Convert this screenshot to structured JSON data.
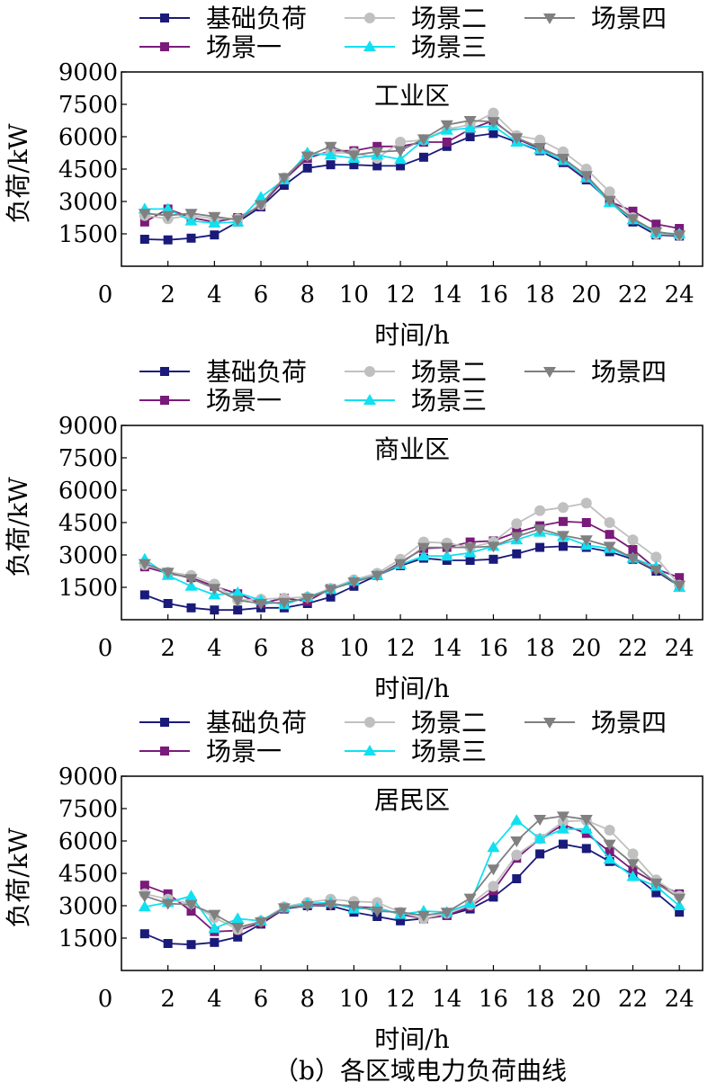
{
  "figure_caption": "（b）各区域电力负荷曲线",
  "legend": [
    {
      "name": "基础负荷",
      "color": "#1a1a7a",
      "marker": "square"
    },
    {
      "name": "场景二",
      "color": "#c0c0c0",
      "marker": "circle"
    },
    {
      "name": "场景四",
      "color": "#808080",
      "marker": "triangle-down"
    },
    {
      "name": "场景一",
      "color": "#7a1a7a",
      "marker": "square"
    },
    {
      "name": "场景三",
      "color": "#10e0f0",
      "marker": "triangle-up"
    }
  ],
  "chart_data": [
    {
      "type": "line",
      "title": "工业区",
      "xlabel": "时间/h",
      "ylabel": "负荷/kW",
      "xlim": [
        0,
        25
      ],
      "ylim": [
        0,
        9000
      ],
      "xticks": [
        0,
        2,
        4,
        6,
        8,
        10,
        12,
        14,
        16,
        18,
        20,
        22,
        24
      ],
      "yticks": [
        1500,
        3000,
        4500,
        6000,
        7500,
        9000
      ],
      "x": [
        1,
        2,
        3,
        4,
        5,
        6,
        7,
        8,
        9,
        10,
        11,
        12,
        13,
        14,
        15,
        16,
        17,
        18,
        19,
        20,
        21,
        22,
        23,
        24
      ],
      "series": [
        {
          "name": "基础负荷",
          "values": [
            1250,
            1220,
            1300,
            1450,
            2050,
            2750,
            3750,
            4550,
            4700,
            4700,
            4650,
            4650,
            5050,
            5550,
            6000,
            6150,
            5750,
            5350,
            4800,
            4000,
            3000,
            2050,
            1450,
            1400
          ]
        },
        {
          "name": "场景一",
          "values": [
            2050,
            2650,
            2250,
            2050,
            2250,
            2800,
            4000,
            5000,
            5350,
            5350,
            5550,
            5550,
            5750,
            5750,
            6350,
            6750,
            5900,
            5450,
            4850,
            4050,
            3000,
            2550,
            1950,
            1750
          ]
        },
        {
          "name": "场景二",
          "values": [
            2350,
            2200,
            2350,
            2200,
            2200,
            2850,
            4100,
            5150,
            5250,
            5250,
            5000,
            5750,
            5850,
            6350,
            6550,
            7100,
            6050,
            5850,
            5300,
            4500,
            3450,
            2250,
            1500,
            1450
          ]
        },
        {
          "name": "场景三",
          "values": [
            2650,
            2650,
            2100,
            2000,
            2050,
            3200,
            4000,
            5250,
            5150,
            5000,
            5150,
            4950,
            5850,
            6300,
            6400,
            6500,
            5750,
            5400,
            4900,
            4100,
            2950,
            2150,
            1550,
            1500
          ]
        },
        {
          "name": "场景四",
          "values": [
            2450,
            2350,
            2450,
            2300,
            2150,
            2850,
            4100,
            5100,
            5550,
            5150,
            5300,
            5350,
            5900,
            6550,
            6750,
            6700,
            5950,
            5500,
            5000,
            4200,
            3050,
            2200,
            1600,
            1450
          ]
        }
      ]
    },
    {
      "type": "line",
      "title": "商业区",
      "xlabel": "时间/h",
      "ylabel": "负荷/kW",
      "xlim": [
        0,
        25
      ],
      "ylim": [
        0,
        9000
      ],
      "xticks": [
        0,
        2,
        4,
        6,
        8,
        10,
        12,
        14,
        16,
        18,
        20,
        22,
        24
      ],
      "yticks": [
        1500,
        3000,
        4500,
        6000,
        7500,
        9000
      ],
      "x": [
        1,
        2,
        3,
        4,
        5,
        6,
        7,
        8,
        9,
        10,
        11,
        12,
        13,
        14,
        15,
        16,
        17,
        18,
        19,
        20,
        21,
        22,
        23,
        24
      ],
      "series": [
        {
          "name": "基础负荷",
          "values": [
            1150,
            750,
            550,
            450,
            450,
            550,
            550,
            750,
            1050,
            1550,
            2050,
            2500,
            2850,
            2750,
            2750,
            2800,
            3050,
            3350,
            3400,
            3350,
            3150,
            2800,
            2250,
            1550
          ]
        },
        {
          "name": "场景一",
          "values": [
            2450,
            2150,
            1950,
            1550,
            1200,
            750,
            1000,
            850,
            1450,
            1750,
            2050,
            2650,
            3300,
            3350,
            3600,
            3650,
            4050,
            4350,
            4550,
            4500,
            3950,
            3250,
            2350,
            1950
          ]
        },
        {
          "name": "场景二",
          "values": [
            2550,
            2200,
            2050,
            1650,
            900,
            950,
            1000,
            1050,
            1450,
            1850,
            2150,
            2800,
            3600,
            3550,
            3350,
            3600,
            4450,
            5050,
            5200,
            5400,
            4500,
            3700,
            2900,
            1600
          ]
        },
        {
          "name": "场景三",
          "values": [
            2800,
            2050,
            1550,
            1150,
            1250,
            900,
            700,
            1050,
            1400,
            1800,
            2050,
            2550,
            2950,
            2950,
            3100,
            3400,
            3700,
            4050,
            3850,
            3450,
            3300,
            2850,
            2450,
            1500
          ]
        },
        {
          "name": "场景四",
          "values": [
            2600,
            2200,
            1900,
            1450,
            900,
            750,
            800,
            1000,
            1400,
            1750,
            2050,
            2600,
            3350,
            3350,
            3350,
            3400,
            3850,
            4200,
            3900,
            3700,
            3400,
            2850,
            2300,
            1600
          ]
        }
      ]
    },
    {
      "type": "line",
      "title": "居民区",
      "xlabel": "时间/h",
      "ylabel": "负荷/kW",
      "xlim": [
        0,
        25
      ],
      "ylim": [
        0,
        9000
      ],
      "xticks": [
        0,
        2,
        4,
        6,
        8,
        10,
        12,
        14,
        16,
        18,
        20,
        22,
        24
      ],
      "yticks": [
        1500,
        3000,
        4500,
        6000,
        7500,
        9000
      ],
      "x": [
        1,
        2,
        3,
        4,
        5,
        6,
        7,
        8,
        9,
        10,
        11,
        12,
        13,
        14,
        15,
        16,
        17,
        18,
        19,
        20,
        21,
        22,
        23,
        24
      ],
      "series": [
        {
          "name": "基础负荷",
          "values": [
            1700,
            1250,
            1200,
            1300,
            1550,
            2150,
            2850,
            3000,
            3000,
            2700,
            2500,
            2300,
            2400,
            2550,
            2850,
            3400,
            4250,
            5400,
            5850,
            5650,
            5050,
            4450,
            3600,
            2700
          ]
        },
        {
          "name": "场景一",
          "values": [
            3950,
            3550,
            2750,
            1800,
            1850,
            2200,
            2850,
            3050,
            3100,
            2950,
            2900,
            2600,
            2400,
            2550,
            2950,
            3700,
            5200,
            6100,
            6750,
            6350,
            5500,
            4650,
            4050,
            3550
          ]
        },
        {
          "name": "场景二",
          "values": [
            3550,
            3300,
            3100,
            2450,
            1900,
            2300,
            2950,
            3150,
            3300,
            3200,
            3150,
            2700,
            2400,
            2650,
            3050,
            3900,
            5350,
            6100,
            6900,
            6950,
            6500,
            5400,
            4200,
            3450
          ]
        },
        {
          "name": "场景三",
          "values": [
            2950,
            3150,
            3450,
            1950,
            2400,
            2300,
            2900,
            3100,
            3150,
            2850,
            2900,
            2600,
            2750,
            2700,
            3100,
            5700,
            6950,
            6100,
            6550,
            6550,
            5150,
            4350,
            3900,
            3000
          ]
        },
        {
          "name": "场景四",
          "values": [
            3450,
            3100,
            3050,
            2600,
            2000,
            2250,
            2900,
            3000,
            3050,
            3000,
            2750,
            2700,
            2550,
            2700,
            3350,
            4700,
            6000,
            7000,
            7150,
            7000,
            5850,
            4950,
            4050,
            3350
          ]
        }
      ]
    }
  ]
}
